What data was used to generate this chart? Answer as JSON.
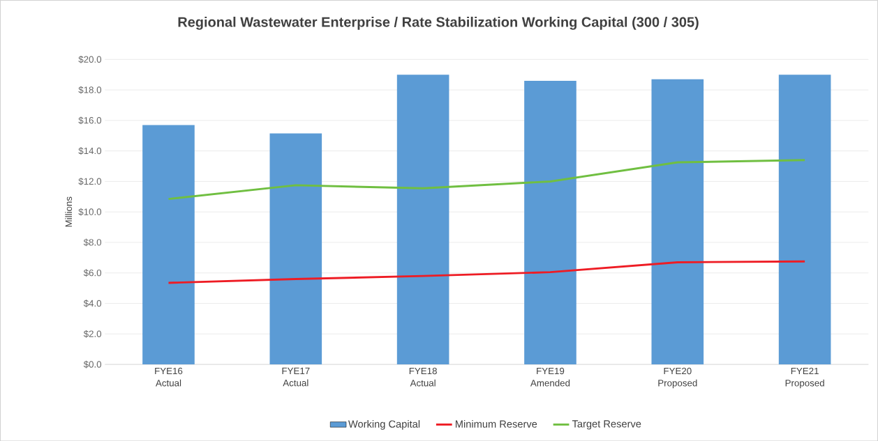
{
  "chart_data": {
    "type": "bar",
    "title": "Regional Wastewater Enterprise / Rate Stabilization Working Capital (300 / 305)",
    "ylabel": "Millions",
    "categories": [
      "FYE16 Actual",
      "FYE17 Actual",
      "FYE18 Actual",
      "FYE19 Amended",
      "FYE20 Proposed",
      "FYE21 Proposed"
    ],
    "series": [
      {
        "name": "Working Capital",
        "color": "#5b9bd5",
        "values": [
          15.7,
          15.15,
          19.0,
          18.6,
          18.7,
          19.0
        ]
      },
      {
        "name": "Minimum Reserve",
        "type": "line",
        "color": "#ee1c24",
        "values": [
          5.35,
          5.6,
          5.8,
          6.05,
          6.7,
          6.75
        ]
      },
      {
        "name": "Target Reserve",
        "type": "line",
        "color": "#70bf41",
        "values": [
          10.85,
          11.75,
          11.55,
          12.0,
          13.25,
          13.4
        ]
      }
    ],
    "ylim": [
      0,
      20
    ],
    "yticks": [
      {
        "value": 0,
        "label": "$0.0"
      },
      {
        "value": 2,
        "label": "$2.0"
      },
      {
        "value": 4,
        "label": "$4.0"
      },
      {
        "value": 6,
        "label": "$6.0"
      },
      {
        "value": 8,
        "label": "$8.0"
      },
      {
        "value": 10,
        "label": "$10.0"
      },
      {
        "value": 12,
        "label": "$12.0"
      },
      {
        "value": 14,
        "label": "$14.0"
      },
      {
        "value": 16,
        "label": "$16.0"
      },
      {
        "value": 18,
        "label": "$18.0"
      },
      {
        "value": 20,
        "label": "$20.0"
      }
    ],
    "grid": "y",
    "legend": "bottom"
  }
}
